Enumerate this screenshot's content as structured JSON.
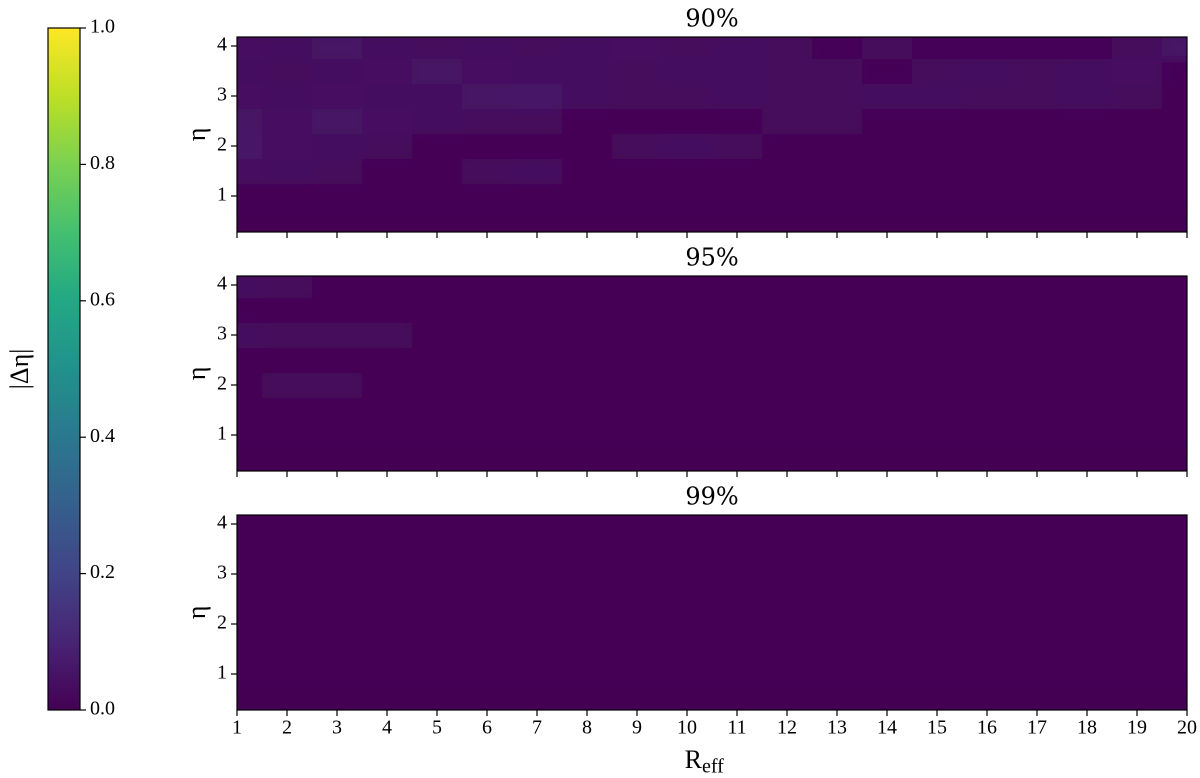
{
  "chart_data": [
    {
      "type": "heatmap",
      "title": "90%",
      "ylabel": "η",
      "x": [
        1,
        2,
        3,
        4,
        5,
        6,
        7,
        8,
        9,
        10,
        11,
        12,
        13,
        14,
        15,
        16,
        17,
        18,
        19,
        20
      ],
      "y": [
        1,
        1.5,
        2,
        2.5,
        3,
        3.5,
        4
      ],
      "values": [
        [
          0,
          0,
          0,
          0,
          0,
          0,
          0,
          0,
          0,
          0,
          0,
          0,
          0,
          0,
          0,
          0,
          0,
          0,
          0,
          0
        ],
        [
          0.04,
          0.03,
          0.02,
          0,
          0,
          0.02,
          0.03,
          0,
          0,
          0,
          0,
          0,
          0,
          0,
          0,
          0,
          0,
          0,
          0,
          0
        ],
        [
          0.06,
          0.04,
          0.03,
          0.02,
          0,
          0,
          0,
          0,
          0.02,
          0.03,
          0.02,
          0,
          0,
          0,
          0,
          0,
          0,
          0,
          0,
          0
        ],
        [
          0.05,
          0.04,
          0.05,
          0.04,
          0.03,
          0.02,
          0.02,
          0,
          0,
          0,
          0,
          0.02,
          0.02,
          0,
          0,
          0,
          0,
          0,
          0,
          0
        ],
        [
          0.04,
          0.03,
          0.04,
          0.03,
          0.03,
          0.05,
          0.06,
          0.03,
          0.02,
          0.02,
          0.03,
          0.02,
          0.02,
          0.03,
          0.03,
          0.02,
          0.02,
          0.03,
          0.02,
          0
        ],
        [
          0.03,
          0.02,
          0.03,
          0.04,
          0.05,
          0.04,
          0.03,
          0.03,
          0.02,
          0.03,
          0.03,
          0.02,
          0.02,
          0.01,
          0.02,
          0.03,
          0.02,
          0.03,
          0.04,
          0.01
        ],
        [
          0.04,
          0.03,
          0.05,
          0.03,
          0.02,
          0.03,
          0.02,
          0.03,
          0.04,
          0.02,
          0.03,
          0.02,
          0.01,
          0.02,
          0.01,
          0.01,
          0.01,
          0.01,
          0.02,
          0.05
        ]
      ],
      "xlim": [
        1,
        20
      ],
      "ylim": [
        0.28,
        4.18
      ],
      "xticks": [
        1,
        2,
        3,
        4,
        5,
        6,
        7,
        8,
        9,
        10,
        11,
        12,
        13,
        14,
        15,
        16,
        17,
        18,
        19,
        20
      ],
      "yticks": [
        1,
        2,
        3,
        4
      ]
    },
    {
      "type": "heatmap",
      "title": "95%",
      "ylabel": "η",
      "x": [
        1,
        2,
        3,
        4,
        5,
        6,
        7,
        8,
        9,
        10,
        11,
        12,
        13,
        14,
        15,
        16,
        17,
        18,
        19,
        20
      ],
      "y": [
        1,
        1.5,
        2,
        2.5,
        3,
        3.5,
        4
      ],
      "values": [
        [
          0,
          0,
          0,
          0,
          0,
          0,
          0,
          0,
          0,
          0,
          0,
          0,
          0,
          0,
          0,
          0,
          0,
          0,
          0,
          0
        ],
        [
          0,
          0,
          0,
          0,
          0,
          0,
          0,
          0,
          0,
          0,
          0,
          0,
          0,
          0,
          0,
          0,
          0,
          0,
          0,
          0
        ],
        [
          0,
          0.02,
          0.02,
          0,
          0,
          0,
          0,
          0,
          0,
          0,
          0,
          0,
          0,
          0,
          0,
          0,
          0,
          0,
          0,
          0
        ],
        [
          0,
          0,
          0,
          0,
          0,
          0,
          0,
          0,
          0,
          0,
          0,
          0,
          0,
          0,
          0,
          0,
          0,
          0,
          0,
          0
        ],
        [
          0.03,
          0.02,
          0.02,
          0.02,
          0,
          0,
          0,
          0,
          0,
          0,
          0,
          0,
          0,
          0,
          0,
          0,
          0,
          0,
          0,
          0
        ],
        [
          0,
          0,
          0,
          0,
          0,
          0,
          0,
          0,
          0,
          0,
          0,
          0,
          0,
          0,
          0,
          0,
          0,
          0,
          0,
          0
        ],
        [
          0.03,
          0.02,
          0,
          0,
          0,
          0,
          0,
          0,
          0,
          0,
          0,
          0,
          0,
          0,
          0,
          0,
          0,
          0,
          0,
          0
        ]
      ],
      "xlim": [
        1,
        20
      ],
      "ylim": [
        0.28,
        4.18
      ],
      "xticks": [
        1,
        2,
        3,
        4,
        5,
        6,
        7,
        8,
        9,
        10,
        11,
        12,
        13,
        14,
        15,
        16,
        17,
        18,
        19,
        20
      ],
      "yticks": [
        1,
        2,
        3,
        4
      ]
    },
    {
      "type": "heatmap",
      "title": "99%",
      "ylabel": "η",
      "xlabel_base": "R",
      "xlabel_sub": "eff",
      "x": [
        1,
        2,
        3,
        4,
        5,
        6,
        7,
        8,
        9,
        10,
        11,
        12,
        13,
        14,
        15,
        16,
        17,
        18,
        19,
        20
      ],
      "y": [
        1,
        1.5,
        2,
        2.5,
        3,
        3.5,
        4
      ],
      "values": [
        [
          0,
          0,
          0,
          0,
          0,
          0,
          0,
          0,
          0,
          0,
          0,
          0,
          0,
          0,
          0,
          0,
          0,
          0,
          0,
          0
        ],
        [
          0,
          0,
          0,
          0,
          0,
          0,
          0,
          0,
          0,
          0,
          0,
          0,
          0,
          0,
          0,
          0,
          0,
          0,
          0,
          0
        ],
        [
          0,
          0,
          0,
          0,
          0,
          0,
          0,
          0,
          0,
          0,
          0,
          0,
          0,
          0,
          0,
          0,
          0,
          0,
          0,
          0
        ],
        [
          0,
          0,
          0,
          0,
          0,
          0,
          0,
          0,
          0,
          0,
          0,
          0,
          0,
          0,
          0,
          0,
          0,
          0,
          0,
          0
        ],
        [
          0,
          0,
          0,
          0,
          0,
          0,
          0,
          0,
          0,
          0,
          0,
          0,
          0,
          0,
          0,
          0,
          0,
          0,
          0,
          0
        ],
        [
          0,
          0,
          0,
          0,
          0,
          0,
          0,
          0,
          0,
          0,
          0,
          0,
          0,
          0,
          0,
          0,
          0,
          0,
          0,
          0
        ],
        [
          0,
          0,
          0,
          0,
          0,
          0,
          0,
          0,
          0,
          0,
          0,
          0,
          0,
          0,
          0,
          0,
          0,
          0,
          0,
          0
        ]
      ],
      "xlim": [
        1,
        20
      ],
      "ylim": [
        0.28,
        4.18
      ],
      "xticks": [
        1,
        2,
        3,
        4,
        5,
        6,
        7,
        8,
        9,
        10,
        11,
        12,
        13,
        14,
        15,
        16,
        17,
        18,
        19,
        20
      ],
      "yticks": [
        1,
        2,
        3,
        4
      ]
    }
  ],
  "colorbar": {
    "label": "|Δη|",
    "colormap": "viridis",
    "clim": [
      0,
      1
    ],
    "ticks": [
      {
        "value": 0,
        "label": "0.0"
      },
      0.2,
      0.4,
      0.6,
      0.8,
      {
        "value": 1,
        "label": "1.0"
      }
    ]
  }
}
